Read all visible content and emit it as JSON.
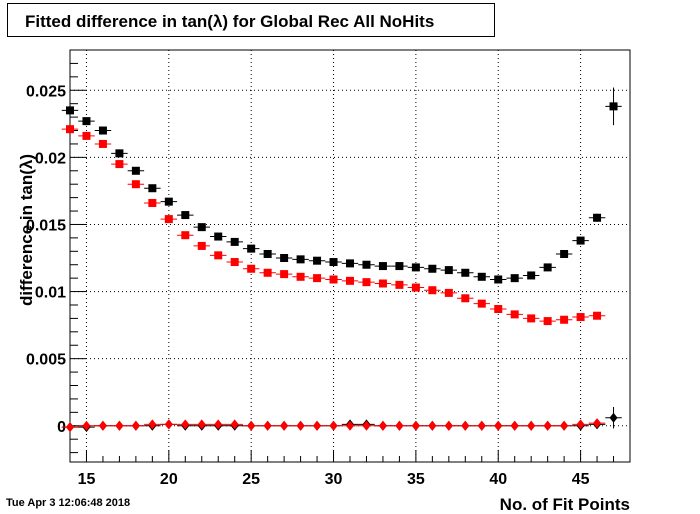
{
  "timestamp": "Tue Apr  3 12:06:48 2018",
  "chart_data": {
    "type": "scatter",
    "title": "Fitted difference in tan(λ) for Global Rec All NoHits",
    "xlabel": "No. of Fit Points",
    "ylabel": "difference in tan(λ)",
    "xlim": [
      14,
      48
    ],
    "ylim": [
      -0.0027,
      0.028
    ],
    "x_ticks": [
      15,
      20,
      25,
      30,
      35,
      40,
      45
    ],
    "x_tick_labels": [
      "15",
      "20",
      "25",
      "30",
      "35",
      "40",
      "45"
    ],
    "y_ticks": [
      0,
      0.005,
      0.01,
      0.015,
      0.02,
      0.025
    ],
    "y_tick_labels": [
      "0",
      "0.005",
      "0.01",
      "0.015",
      "0.02",
      "0.025"
    ],
    "grid": true,
    "x": [
      14,
      15,
      16,
      17,
      18,
      19,
      20,
      21,
      22,
      23,
      24,
      25,
      26,
      27,
      28,
      29,
      30,
      31,
      32,
      33,
      34,
      35,
      36,
      37,
      38,
      39,
      40,
      41,
      42,
      43,
      44,
      45,
      46,
      47
    ],
    "series": [
      {
        "marker": "square",
        "color": "#000000",
        "values": [
          0.0235,
          0.0227,
          0.022,
          0.0203,
          0.019,
          0.0177,
          0.0167,
          0.0157,
          0.0148,
          0.0141,
          0.0137,
          0.0132,
          0.0128,
          0.0125,
          0.0124,
          0.0123,
          0.0122,
          0.0121,
          0.012,
          0.0119,
          0.0119,
          0.0118,
          0.0117,
          0.0116,
          0.0114,
          0.0111,
          0.0109,
          0.011,
          0.0112,
          0.0118,
          0.0128,
          0.0138,
          0.0155,
          0.0238
        ],
        "errors": [
          0.0003,
          0.0002,
          0.0002,
          0.0002,
          0.0002,
          0.0002,
          0.0002,
          0.0002,
          0.0002,
          0.0002,
          0.0002,
          0.0002,
          0.0002,
          0.0002,
          0.0002,
          0.0002,
          0.0002,
          0.0002,
          0.0002,
          0.0002,
          0.0002,
          0.0002,
          0.0002,
          0.0002,
          0.0002,
          0.0002,
          0.0002,
          0.0002,
          0.0002,
          0.0002,
          0.0002,
          0.0002,
          0.0003,
          0.0014
        ]
      },
      {
        "marker": "square",
        "color": "#ff0000",
        "values": [
          0.0221,
          0.0216,
          0.021,
          0.0195,
          0.018,
          0.0166,
          0.0154,
          0.0142,
          0.0134,
          0.0127,
          0.0122,
          0.0117,
          0.0114,
          0.0113,
          0.0111,
          0.011,
          0.0109,
          0.0108,
          0.0107,
          0.0106,
          0.0105,
          0.0103,
          0.0101,
          0.0099,
          0.0095,
          0.0091,
          0.0087,
          0.0083,
          0.008,
          0.0078,
          0.0079,
          0.0081,
          0.0082
        ],
        "errors": [
          0.0002,
          0.0002,
          0.0002,
          0.0002,
          0.0002,
          0.0002,
          0.0002,
          0.0002,
          0.0002,
          0.0002,
          0.0002,
          0.0002,
          0.0002,
          0.0002,
          0.0002,
          0.0002,
          0.0002,
          0.0002,
          0.0002,
          0.0002,
          0.0002,
          0.0002,
          0.0002,
          0.0002,
          0.0002,
          0.0002,
          0.0002,
          0.0002,
          0.0002,
          0.0002,
          0.0002,
          0.0002,
          0.0002
        ]
      },
      {
        "marker": "diamond",
        "color": "#000000",
        "values": [
          -0.0001,
          -0.0001,
          0.0,
          0.0,
          0.0,
          0.0,
          0.0001,
          0.0,
          0.0,
          0.0,
          0.0,
          0.0,
          0.0,
          0.0,
          0.0,
          0.0,
          0.0,
          0.0001,
          0.0001,
          0.0,
          0.0,
          0.0,
          0.0,
          0.0,
          0.0,
          0.0,
          0.0,
          0.0,
          0.0,
          0.0,
          0.0,
          0.0,
          0.0001,
          0.0006
        ],
        "errors": [
          0.0001,
          0.0001,
          0.0001,
          0.0001,
          0.0001,
          0.0001,
          0.0001,
          0.0001,
          0.0001,
          0.0001,
          0.0001,
          0.0001,
          0.0001,
          0.0001,
          0.0001,
          0.0001,
          0.0001,
          0.0001,
          0.0001,
          0.0001,
          0.0001,
          0.0001,
          0.0001,
          0.0001,
          0.0001,
          0.0001,
          0.0001,
          0.0001,
          0.0001,
          0.0001,
          0.0001,
          0.0001,
          0.0002,
          0.0008
        ]
      },
      {
        "marker": "diamond",
        "color": "#ff0000",
        "values": [
          -0.0001,
          0.0,
          0.0,
          0.0,
          0.0,
          0.0001,
          0.0001,
          0.0001,
          0.0001,
          0.0001,
          0.0001,
          0.0,
          0.0,
          0.0,
          0.0,
          0.0,
          0.0,
          0.0,
          0.0,
          0.0,
          0.0,
          0.0,
          0.0,
          0.0,
          0.0,
          0.0,
          0.0,
          0.0,
          0.0,
          0.0,
          0.0,
          0.0001,
          0.0002
        ],
        "errors": [
          0.0001,
          0.0001,
          0.0001,
          0.0001,
          0.0001,
          0.0001,
          0.0001,
          0.0001,
          0.0001,
          0.0001,
          0.0001,
          0.0001,
          0.0001,
          0.0001,
          0.0001,
          0.0001,
          0.0001,
          0.0001,
          0.0001,
          0.0001,
          0.0001,
          0.0001,
          0.0001,
          0.0001,
          0.0001,
          0.0001,
          0.0001,
          0.0001,
          0.0001,
          0.0001,
          0.0001,
          0.0001,
          0.0001
        ]
      }
    ]
  }
}
